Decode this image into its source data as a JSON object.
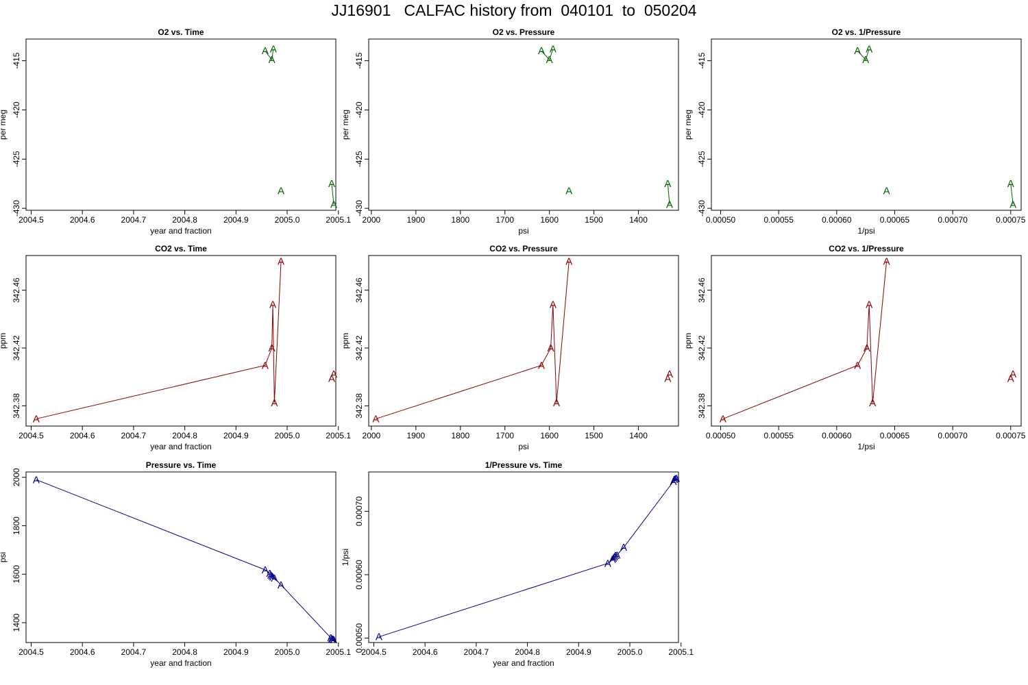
{
  "page_title": "JJ16901   CALFAC history from  040101  to  050204",
  "chart_data": [
    {
      "type": "line",
      "title": "O2 vs. Time",
      "xlabel": "year and fraction",
      "ylabel": "per meg",
      "color": "#006400",
      "marker": "A",
      "xlim": [
        2004.49,
        2005.095
      ],
      "ylim": [
        -430.2,
        -412.8
      ],
      "xticks": [
        2004.5,
        2004.6,
        2004.7,
        2004.8,
        2004.9,
        2005.0,
        2005.1
      ],
      "xtick_labels": [
        "2004.5",
        "2004.6",
        "2004.7",
        "2004.8",
        "2004.9",
        "2005.0",
        "2005.1"
      ],
      "yticks": [
        -415,
        -420,
        -425,
        -430
      ],
      "ytick_labels": [
        "-415",
        "-420",
        "-425",
        "-430"
      ],
      "series": [
        {
          "x": [
            2004.957,
            2004.97,
            2004.973
          ],
          "y": [
            -414.0,
            -414.9,
            -413.8
          ],
          "connected": true
        },
        {
          "x": [
            2004.988
          ],
          "y": [
            -428.2
          ],
          "connected": false
        },
        {
          "x": [
            2005.087,
            2005.091
          ],
          "y": [
            -427.5,
            -429.6
          ],
          "connected": true
        }
      ]
    },
    {
      "type": "line",
      "title": "O2 vs. Pressure",
      "xlabel": "psi",
      "ylabel": "per meg",
      "color": "#006400",
      "marker": "A",
      "xlim": [
        2006,
        1310
      ],
      "ylim": [
        -430.2,
        -412.8
      ],
      "xticks": [
        2000,
        1900,
        1800,
        1700,
        1600,
        1500,
        1400
      ],
      "xtick_labels": [
        "2000",
        "1900",
        "1800",
        "1700",
        "1600",
        "1500",
        "1400"
      ],
      "yticks": [
        -415,
        -420,
        -425,
        -430
      ],
      "ytick_labels": [
        "-415",
        "-420",
        "-425",
        "-430"
      ],
      "series": [
        {
          "x": [
            1618,
            1600,
            1592
          ],
          "y": [
            -414.0,
            -414.9,
            -413.8
          ],
          "connected": true
        },
        {
          "x": [
            1556
          ],
          "y": [
            -428.2
          ],
          "connected": false
        },
        {
          "x": [
            1334,
            1330
          ],
          "y": [
            -427.5,
            -429.6
          ],
          "connected": true
        }
      ]
    },
    {
      "type": "line",
      "title": "O2 vs. 1/Pressure",
      "xlabel": "1/psi",
      "ylabel": "per meg",
      "color": "#006400",
      "marker": "A",
      "xlim": [
        0.000492,
        0.000759
      ],
      "ylim": [
        -430.2,
        -412.8
      ],
      "xticks": [
        0.0005,
        0.00055,
        0.0006,
        0.00065,
        0.0007,
        0.00075
      ],
      "xtick_labels": [
        "0.00050",
        "0.00055",
        "0.00060",
        "0.00065",
        "0.00070",
        "0.00075"
      ],
      "yticks": [
        -415,
        -420,
        -425,
        -430
      ],
      "ytick_labels": [
        "-415",
        "-420",
        "-425",
        "-430"
      ],
      "series": [
        {
          "x": [
            0.000618,
            0.000625,
            0.000628
          ],
          "y": [
            -414.0,
            -414.9,
            -413.8
          ],
          "connected": true
        },
        {
          "x": [
            0.000643
          ],
          "y": [
            -428.2
          ],
          "connected": false
        },
        {
          "x": [
            0.00075,
            0.000752
          ],
          "y": [
            -427.5,
            -429.6
          ],
          "connected": true
        }
      ]
    },
    {
      "type": "line",
      "title": "CO2 vs. Time",
      "xlabel": "year and fraction",
      "ylabel": "ppm",
      "color": "#8b0000",
      "marker": "A",
      "xlim": [
        2004.49,
        2005.095
      ],
      "ylim": [
        342.366,
        342.484
      ],
      "xticks": [
        2004.5,
        2004.6,
        2004.7,
        2004.8,
        2004.9,
        2005.0,
        2005.1
      ],
      "xtick_labels": [
        "2004.5",
        "2004.6",
        "2004.7",
        "2004.8",
        "2004.9",
        "2005.0",
        "2005.1"
      ],
      "yticks": [
        342.38,
        342.42,
        342.46
      ],
      "ytick_labels": [
        "342.38",
        "342.42",
        "342.46"
      ],
      "series": [
        {
          "x": [
            2004.51,
            2004.957,
            2004.97,
            2004.972,
            2004.975,
            2004.988
          ],
          "y": [
            342.371,
            342.408,
            342.42,
            342.45,
            342.382,
            342.48
          ],
          "connected": true
        },
        {
          "x": [
            2005.087
          ],
          "y": [
            342.399
          ],
          "connected": false
        },
        {
          "x": [
            2005.091
          ],
          "y": [
            342.402
          ],
          "connected": false
        }
      ]
    },
    {
      "type": "line",
      "title": "CO2 vs. Pressure",
      "xlabel": "psi",
      "ylabel": "ppm",
      "color": "#8b0000",
      "marker": "A",
      "xlim": [
        2006,
        1310
      ],
      "ylim": [
        342.366,
        342.484
      ],
      "xticks": [
        2000,
        1900,
        1800,
        1700,
        1600,
        1500,
        1400
      ],
      "xtick_labels": [
        "2000",
        "1900",
        "1800",
        "1700",
        "1600",
        "1500",
        "1400"
      ],
      "yticks": [
        342.38,
        342.42,
        342.46
      ],
      "ytick_labels": [
        "342.38",
        "342.42",
        "342.46"
      ],
      "series": [
        {
          "x": [
            1990,
            1618,
            1597,
            1592,
            1584,
            1556
          ],
          "y": [
            342.371,
            342.408,
            342.42,
            342.45,
            342.382,
            342.48
          ],
          "connected": true
        },
        {
          "x": [
            1334
          ],
          "y": [
            342.399
          ],
          "connected": false
        },
        {
          "x": [
            1330
          ],
          "y": [
            342.402
          ],
          "connected": false
        }
      ]
    },
    {
      "type": "line",
      "title": "CO2 vs. 1/Pressure",
      "xlabel": "1/psi",
      "ylabel": "ppm",
      "color": "#8b0000",
      "marker": "A",
      "xlim": [
        0.000492,
        0.000759
      ],
      "ylim": [
        342.366,
        342.484
      ],
      "xticks": [
        0.0005,
        0.00055,
        0.0006,
        0.00065,
        0.0007,
        0.00075
      ],
      "xtick_labels": [
        "0.00050",
        "0.00055",
        "0.00060",
        "0.00065",
        "0.00070",
        "0.00075"
      ],
      "yticks": [
        342.38,
        342.42,
        342.46
      ],
      "ytick_labels": [
        "342.38",
        "342.42",
        "342.46"
      ],
      "series": [
        {
          "x": [
            0.000502,
            0.000618,
            0.000626,
            0.000628,
            0.000631,
            0.000643
          ],
          "y": [
            342.371,
            342.408,
            342.42,
            342.45,
            342.382,
            342.48
          ],
          "connected": true
        },
        {
          "x": [
            0.00075
          ],
          "y": [
            342.399
          ],
          "connected": false
        },
        {
          "x": [
            0.000752
          ],
          "y": [
            342.402
          ],
          "connected": false
        }
      ]
    },
    {
      "type": "line",
      "title": "Pressure vs. Time",
      "xlabel": "year and fraction",
      "ylabel": "psi",
      "color": "#00008b",
      "marker": "A",
      "xlim": [
        2004.49,
        2005.095
      ],
      "ylim": [
        1318,
        2022
      ],
      "xticks": [
        2004.5,
        2004.6,
        2004.7,
        2004.8,
        2004.9,
        2005.0,
        2005.1
      ],
      "xtick_labels": [
        "2004.5",
        "2004.6",
        "2004.7",
        "2004.8",
        "2004.9",
        "2005.0",
        "2005.1"
      ],
      "yticks": [
        1400,
        1600,
        1800,
        2000
      ],
      "ytick_labels": [
        "1400",
        "1600",
        "1800",
        "2000"
      ],
      "series": [
        {
          "x": [
            2004.51,
            2004.957,
            2004.966,
            2004.968,
            2004.97,
            2004.972,
            2004.975,
            2004.988,
            2005.085,
            2005.087,
            2005.089,
            2005.091
          ],
          "y": [
            1990,
            1618,
            1604,
            1597,
            1592,
            1588,
            1584,
            1556,
            1338,
            1334,
            1332,
            1330
          ],
          "connected": true
        }
      ]
    },
    {
      "type": "line",
      "title": "1/Pressure vs. Time",
      "xlabel": "year and fraction",
      "ylabel": "1/psi",
      "color": "#00008b",
      "marker": "A",
      "xlim": [
        2004.49,
        2005.095
      ],
      "ylim": [
        0.000493,
        0.000762
      ],
      "xticks": [
        2004.5,
        2004.6,
        2004.7,
        2004.8,
        2004.9,
        2005.0,
        2005.1
      ],
      "xtick_labels": [
        "2004.5",
        "2004.6",
        "2004.7",
        "2004.8",
        "2004.9",
        "2005.0",
        "2005.1"
      ],
      "yticks": [
        0.0005,
        0.0006,
        0.0007
      ],
      "ytick_labels": [
        "0.00050",
        "0.00060",
        "0.00070"
      ],
      "series": [
        {
          "x": [
            2004.51,
            2004.957,
            2004.966,
            2004.968,
            2004.97,
            2004.972,
            2004.975,
            2004.988,
            2005.085,
            2005.087,
            2005.089,
            2005.091
          ],
          "y": [
            0.000502,
            0.000618,
            0.000624,
            0.000626,
            0.000628,
            0.00063,
            0.000631,
            0.000643,
            0.000747,
            0.00075,
            0.000751,
            0.000752
          ],
          "connected": true
        }
      ]
    }
  ]
}
